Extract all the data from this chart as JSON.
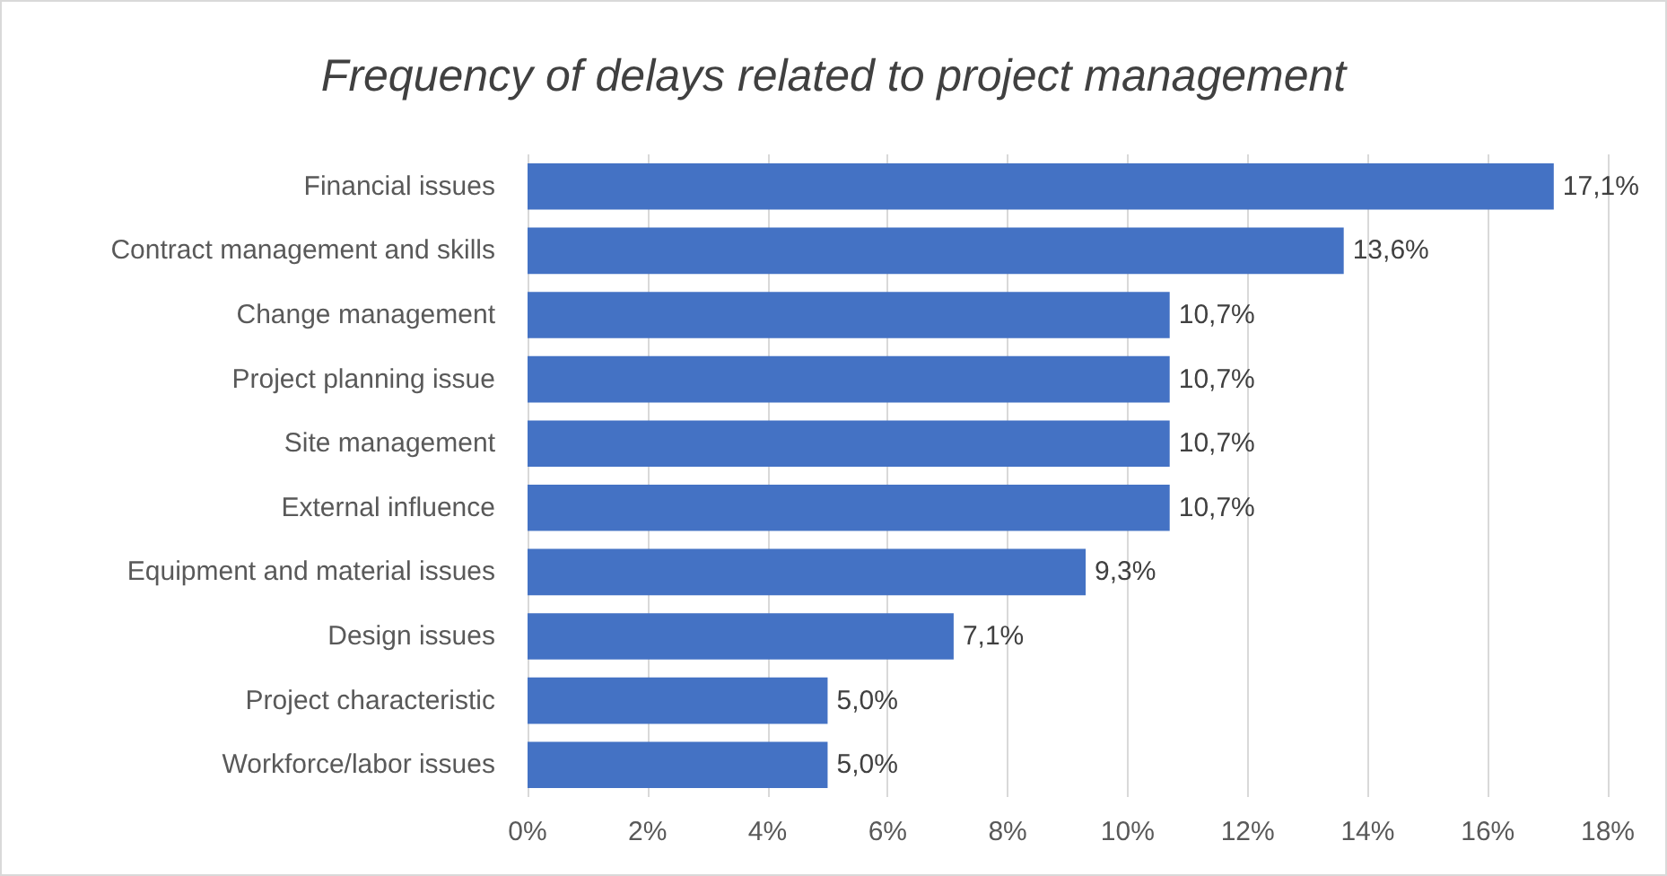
{
  "chart_data": {
    "type": "bar",
    "orientation": "horizontal",
    "title": "Frequency of delays related to project management",
    "categories": [
      "Financial issues",
      "Contract management and skills",
      "Change management",
      "Project planning issue",
      "Site management",
      "External influence",
      "Equipment and material issues",
      "Design issues",
      "Project characteristic",
      "Workforce/labor issues"
    ],
    "values": [
      17.1,
      13.6,
      10.7,
      10.7,
      10.7,
      10.7,
      9.3,
      7.1,
      5.0,
      5.0
    ],
    "value_labels": [
      "17,1%",
      "13,6%",
      "10,7%",
      "10,7%",
      "10,7%",
      "10,7%",
      "9,3%",
      "7,1%",
      "5,0%",
      "5,0%"
    ],
    "color": "#4472c4",
    "xlim": [
      0,
      18
    ],
    "xticks": [
      {
        "value": 0,
        "label": "0%"
      },
      {
        "value": 2,
        "label": "2%"
      },
      {
        "value": 4,
        "label": "4%"
      },
      {
        "value": 6,
        "label": "6%"
      },
      {
        "value": 8,
        "label": "8%"
      },
      {
        "value": 10,
        "label": "10%"
      },
      {
        "value": 12,
        "label": "12%"
      },
      {
        "value": 14,
        "label": "14%"
      },
      {
        "value": 16,
        "label": "16%"
      },
      {
        "value": 18,
        "label": "18%"
      }
    ],
    "grid": "x"
  }
}
